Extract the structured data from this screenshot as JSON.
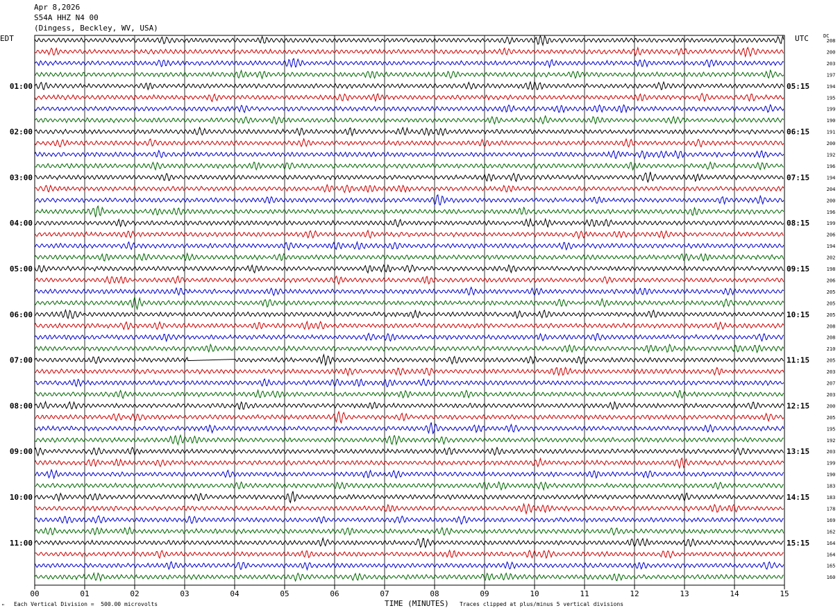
{
  "header": {
    "date": "Apr 8,2026",
    "station": "S54A HHZ N4 00",
    "location": "(Dingess, Beckley, WV, USA)"
  },
  "labels": {
    "left_timezone": "EDT",
    "right_timezone": "UTC",
    "dc_header": "DC"
  },
  "footer": {
    "vertical_division": "Each Vertical Division =  500.00 microvolts",
    "xlabel": "TIME (MINUTES)",
    "clip_note": "Traces clipped at plus/minus 5 vertical divisions",
    "corner_mark": "\""
  },
  "colors": {
    "trace_cycle": [
      "#000000",
      "#cc0000",
      "#0000cc",
      "#006600"
    ],
    "grid": "#000000"
  },
  "chart_data": {
    "type": "line",
    "subtype": "helicorder",
    "title": "",
    "xlabel": "TIME (MINUTES)",
    "xlim": [
      0,
      15
    ],
    "x_ticks": [
      "00",
      "01",
      "02",
      "03",
      "04",
      "05",
      "06",
      "07",
      "08",
      "09",
      "10",
      "11",
      "12",
      "13",
      "14",
      "15"
    ],
    "minutes_per_line": 15,
    "lines_per_hour": 4,
    "hour_labels_edt": [
      "01:00",
      "02:00",
      "03:00",
      "04:00",
      "05:00",
      "06:00",
      "07:00",
      "08:00",
      "09:00",
      "10:00",
      "11:00"
    ],
    "hour_labels_utc": [
      "05:15",
      "06:15",
      "07:15",
      "08:15",
      "09:15",
      "10:15",
      "11:15",
      "12:15",
      "13:15",
      "14:15",
      "15:15"
    ],
    "dc_offsets": [
      208,
      200,
      203,
      197,
      194,
      195,
      199,
      190,
      191,
      200,
      192,
      196,
      194,
      204,
      200,
      196,
      199,
      206,
      194,
      202,
      198,
      206,
      205,
      205,
      205,
      208,
      208,
      210,
      205,
      203,
      207,
      203,
      200,
      205,
      195,
      192,
      203,
      199,
      190,
      183,
      183,
      178,
      169,
      162,
      164,
      164,
      165,
      160
    ],
    "gap": {
      "line_index": 28,
      "x_start": 3.05,
      "x_end": 4.0
    },
    "vertical_division_microvolts": 500.0,
    "clip_divisions": 5,
    "grid": true
  }
}
